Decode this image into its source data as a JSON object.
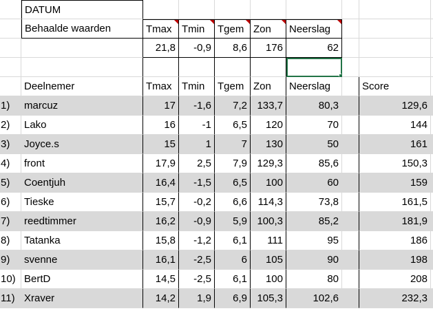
{
  "sheet": {
    "datum_label": "DATUM",
    "behaalde_label": "Behaalde waarden",
    "header_cols": [
      "Tmax",
      "Tmin",
      "Tgem",
      "Zon",
      "Neerslag"
    ],
    "achieved_values": [
      "21,8",
      "-0,9",
      "8,6",
      "176",
      "62"
    ],
    "table_header": {
      "participant": "Deelnemer",
      "cols": [
        "Tmax",
        "Tmin",
        "Tgem",
        "Zon",
        "Neerslag"
      ],
      "score": "Score"
    },
    "rows": [
      {
        "rank": "1)",
        "name": "marcuz",
        "tmax": "17",
        "tmin": "-1,6",
        "tgem": "7,2",
        "zon": "133,7",
        "neerslag": "80,3",
        "score": "129,6"
      },
      {
        "rank": "2)",
        "name": "Lako",
        "tmax": "16",
        "tmin": "-1",
        "tgem": "6,5",
        "zon": "120",
        "neerslag": "70",
        "score": "144"
      },
      {
        "rank": "3)",
        "name": "Joyce.s",
        "tmax": "15",
        "tmin": "1",
        "tgem": "7",
        "zon": "130",
        "neerslag": "50",
        "score": "161"
      },
      {
        "rank": "4)",
        "name": "front",
        "tmax": "17,9",
        "tmin": "2,5",
        "tgem": "7,9",
        "zon": "129,3",
        "neerslag": "85,6",
        "score": "150,3"
      },
      {
        "rank": "5)",
        "name": "Coentjuh",
        "tmax": "16,4",
        "tmin": "-1,5",
        "tgem": "6,5",
        "zon": "100",
        "neerslag": "60",
        "score": "159"
      },
      {
        "rank": "6)",
        "name": "Tieske",
        "tmax": "15,7",
        "tmin": "-0,2",
        "tgem": "6,6",
        "zon": "114,3",
        "neerslag": "73,8",
        "score": "161,5"
      },
      {
        "rank": "7)",
        "name": "reedtimmer",
        "tmax": "16,2",
        "tmin": "-0,9",
        "tgem": "5,9",
        "zon": "100,3",
        "neerslag": "85,2",
        "score": "181,9"
      },
      {
        "rank": "8)",
        "name": "Tatanka",
        "tmax": "15,8",
        "tmin": "-1,2",
        "tgem": "6,1",
        "zon": "111",
        "neerslag": "95",
        "score": "186"
      },
      {
        "rank": "9)",
        "name": "svenne",
        "tmax": "16,1",
        "tmin": "-2,5",
        "tgem": "6",
        "zon": "105",
        "neerslag": "90",
        "score": "198"
      },
      {
        "rank": "10)",
        "name": "BertD",
        "tmax": "14,5",
        "tmin": "-2,5",
        "tgem": "6,1",
        "zon": "100",
        "neerslag": "80",
        "score": "208"
      },
      {
        "rank": "11)",
        "name": "Xraver",
        "tmax": "14,2",
        "tmin": "1,9",
        "tgem": "6,9",
        "zon": "105,3",
        "neerslag": "102,6",
        "score": "232,3"
      }
    ],
    "colors": {
      "band": "#d9d9d9",
      "gridline": "#d9d9d9",
      "selection": "#217346",
      "comment_marker": "#c00000"
    }
  }
}
